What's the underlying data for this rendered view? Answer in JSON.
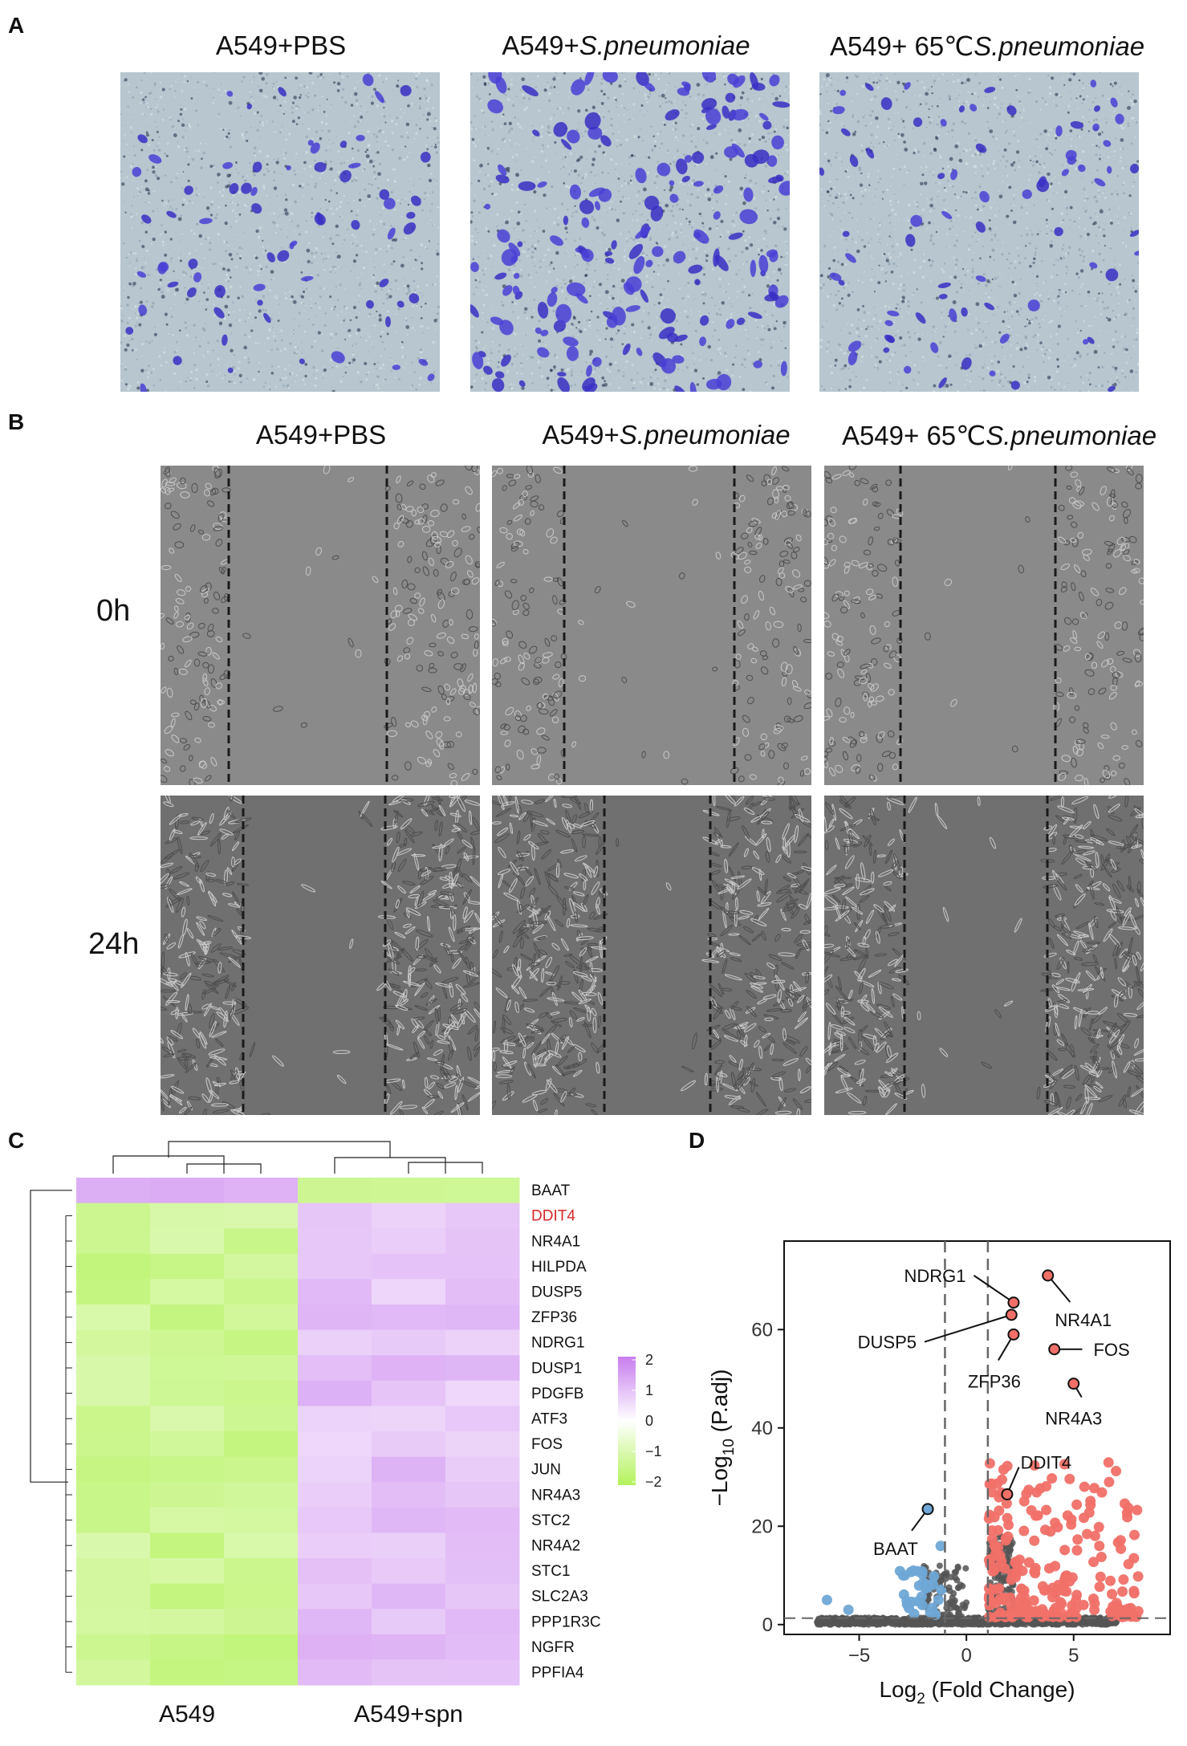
{
  "panels": {
    "A": {
      "label": "A",
      "titles": [
        {
          "plain": "A549+PBS",
          "italic": ""
        },
        {
          "plain": "A549+",
          "italic": "S.pneumoniae"
        },
        {
          "plain": "A549+ 65℃",
          "italic": "S.pneumoniae"
        }
      ]
    },
    "B": {
      "label": "B",
      "titles": [
        {
          "plain": "A549+PBS",
          "italic": ""
        },
        {
          "plain": "A549+",
          "italic": "S.pneumoniae"
        },
        {
          "plain": "A549+ 65℃",
          "italic": "S.pneumoniae"
        }
      ],
      "rows": [
        "0h",
        "24h"
      ]
    },
    "C": {
      "label": "C",
      "genes": [
        "BAAT",
        "DDIT4",
        "NR4A1",
        "HILPDA",
        "DUSP5",
        "ZFP36",
        "NDRG1",
        "DUSP1",
        "PDGFB",
        "ATF3",
        "FOS",
        "JUN",
        "NR4A3",
        "STC2",
        "NR4A2",
        "STC1",
        "SLC2A3",
        "PPP1R3C",
        "NGFR",
        "PPFIA4"
      ],
      "highlight_gene": "DDIT4",
      "highlight_color": "#d62728",
      "groups": [
        "A549",
        "A549+spn"
      ],
      "colorbar_ticks": [
        "2",
        "1",
        "0",
        "−1",
        "−2"
      ],
      "colors": {
        "high": "#c77dee",
        "mid": "#ffffff",
        "low": "#b3f25a"
      }
    },
    "D": {
      "label": "D",
      "xlabel_main": "Log",
      "xlabel_sub": "2",
      "xlabel_rest": " (Fold Change)",
      "ylabel_main": "−Log",
      "ylabel_sub": "10",
      "ylabel_rest": " (P.adj)",
      "xticks": [
        "−5",
        "0",
        "5"
      ],
      "yticks": [
        "0",
        "20",
        "40",
        "60"
      ],
      "labels": {
        "NDRG1": "NDRG1",
        "NR4A1": "NR4A1",
        "DUSP5": "DUSP5",
        "FOS": "FOS",
        "ZFP36": "ZFP36",
        "NR4A3": "NR4A3",
        "DDIT4": "DDIT4",
        "BAAT": "BAAT"
      },
      "colors": {
        "up": "#f07068",
        "down": "#6fa8d6",
        "ns": "#555555"
      }
    }
  },
  "chart_data": {
    "type": "scatter",
    "xlabel": "Log2 (Fold Change)",
    "ylabel": "−Log10 (P.adj)",
    "xlim": [
      -8.5,
      9.5
    ],
    "ylim": [
      -2,
      78
    ],
    "thresholds": {
      "x": [
        -1,
        1
      ],
      "y": 1.3
    },
    "labeled_points": [
      {
        "gene": "NR4A1",
        "x": 3.8,
        "y": 71
      },
      {
        "gene": "NDRG1",
        "x": 2.2,
        "y": 65.5
      },
      {
        "gene": "DUSP5",
        "x": 2.1,
        "y": 63
      },
      {
        "gene": "ZFP36",
        "x": 2.2,
        "y": 59
      },
      {
        "gene": "FOS",
        "x": 4.1,
        "y": 56
      },
      {
        "gene": "NR4A3",
        "x": 5.0,
        "y": 49
      },
      {
        "gene": "DDIT4",
        "x": 1.9,
        "y": 26.5
      },
      {
        "gene": "BAAT",
        "x": -1.8,
        "y": 23.5
      }
    ]
  }
}
